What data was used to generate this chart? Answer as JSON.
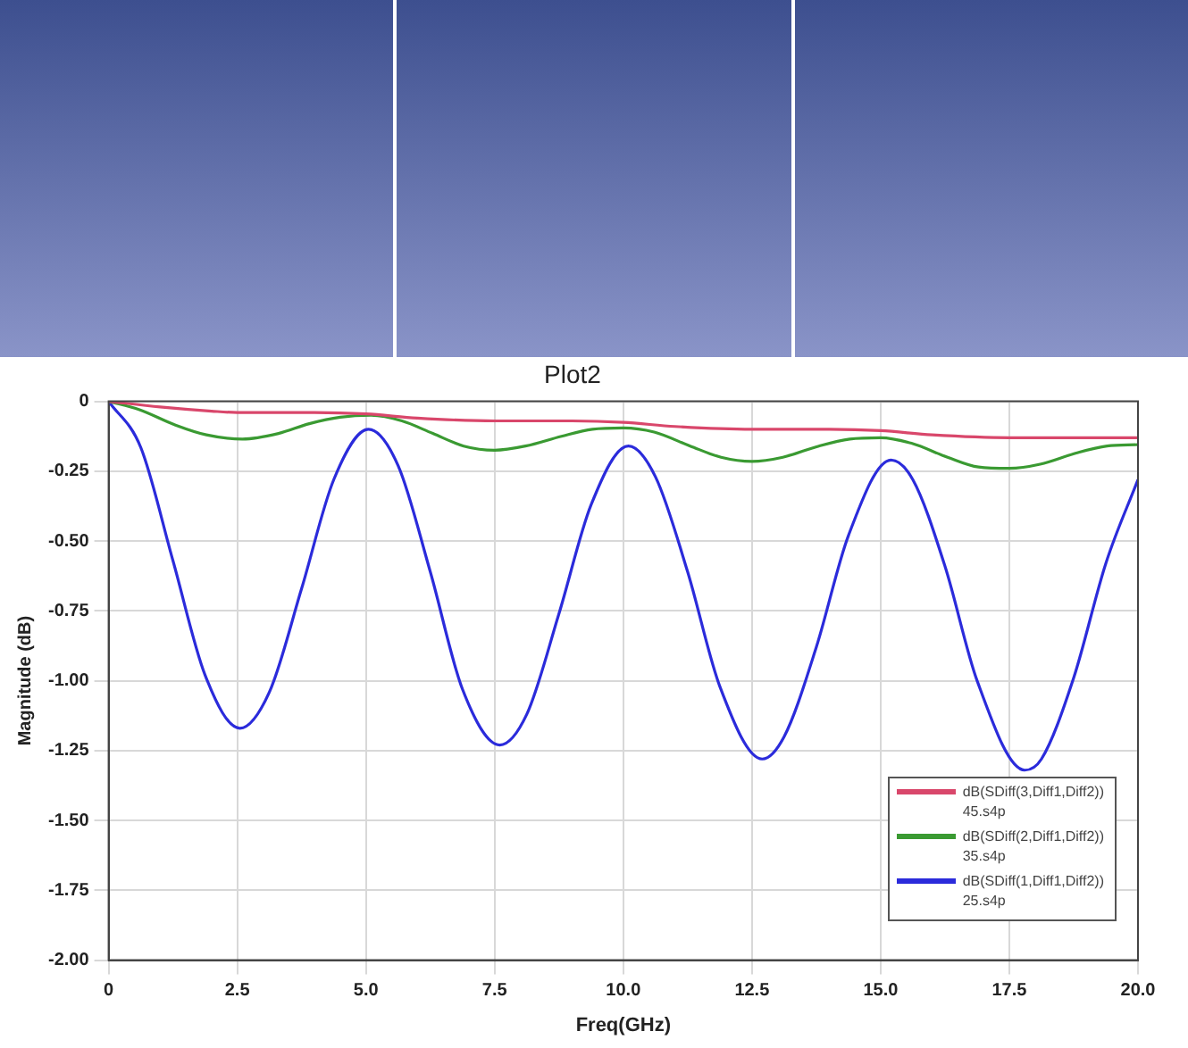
{
  "chart_data": {
    "type": "line",
    "title": "Plot2",
    "xlabel": "Freq(GHz)",
    "ylabel": "Magnitude (dB)",
    "xlim": [
      0,
      20
    ],
    "xticks": [
      0,
      {
        "value": 2.5,
        "label": "2.5"
      },
      {
        "value": 5,
        "label": "5.0"
      },
      {
        "value": 7.5,
        "label": "7.5"
      },
      {
        "value": 10,
        "label": "10.0"
      },
      {
        "value": 12.5,
        "label": "12.5"
      },
      {
        "value": 15,
        "label": "15.0"
      },
      {
        "value": 17.5,
        "label": "17.5"
      },
      {
        "value": 20,
        "label": "20.0"
      }
    ],
    "ylim": [
      -2,
      0
    ],
    "yticks": [
      {
        "value": -2,
        "label": "-2.00"
      },
      {
        "value": -1.75,
        "label": "-1.75"
      },
      {
        "value": -1.5,
        "label": "-1.50"
      },
      {
        "value": -1.25,
        "label": "-1.25"
      },
      {
        "value": -1,
        "label": "-1.00"
      },
      {
        "value": -0.75,
        "label": "-0.75"
      },
      {
        "value": -0.5,
        "label": "-0.50"
      },
      {
        "value": -0.25,
        "label": "-0.25"
      },
      0
    ],
    "grid": true,
    "legend": "bottom right",
    "marker": "none",
    "line_style": "solid",
    "series": [
      {
        "name": "dB(SDiff(3,Diff1,Diff2)) 45.s4p",
        "color": "#d9476b",
        "x": [
          0,
          1,
          2,
          2.5,
          4,
          5,
          6,
          7.5,
          9,
          10,
          11,
          12.5,
          14,
          15,
          16,
          17.5,
          20
        ],
        "values": [
          0,
          -0.02,
          -0.035,
          -0.04,
          -0.04,
          -0.045,
          -0.06,
          -0.07,
          -0.07,
          -0.075,
          -0.09,
          -0.1,
          -0.1,
          -0.105,
          -0.12,
          -0.13,
          -0.13
        ]
      },
      {
        "name": "dB(SDiff(2,Diff1,Diff2)) 35.s4p",
        "color": "#3a9a32",
        "x": [
          0,
          0.6,
          1.3,
          1.9,
          2.6,
          3.3,
          3.9,
          4.5,
          5.1,
          5.7,
          6.3,
          6.9,
          7.5,
          8.1,
          8.8,
          9.4,
          10,
          10.6,
          11.3,
          11.9,
          12.5,
          13.1,
          13.8,
          14.4,
          15,
          15.6,
          16.3,
          16.9,
          17.5,
          18.1,
          18.8,
          19.4,
          20
        ],
        "values": [
          0,
          -0.03,
          -0.085,
          -0.12,
          -0.135,
          -0.115,
          -0.08,
          -0.057,
          -0.05,
          -0.07,
          -0.115,
          -0.16,
          -0.175,
          -0.16,
          -0.125,
          -0.1,
          -0.095,
          -0.11,
          -0.16,
          -0.2,
          -0.215,
          -0.2,
          -0.16,
          -0.135,
          -0.13,
          -0.15,
          -0.2,
          -0.235,
          -0.24,
          -0.225,
          -0.185,
          -0.16,
          -0.155
        ]
      },
      {
        "name": "dB(SDiff(1,Diff1,Diff2)) 25.s4p",
        "color": "#2b2bdb",
        "x": [
          0,
          0.625,
          1.25,
          1.875,
          2.55,
          3.125,
          3.75,
          4.375,
          5.05,
          5.625,
          6.25,
          6.875,
          7.6,
          8.125,
          8.75,
          9.375,
          10.1,
          10.625,
          11.25,
          11.875,
          12.7,
          13.125,
          13.75,
          14.375,
          15.2,
          15.625,
          16.25,
          16.875,
          17.8,
          18.125,
          18.75,
          19.375,
          20
        ],
        "values": [
          0,
          -0.165,
          -0.57,
          -0.98,
          -1.17,
          -1.04,
          -0.67,
          -0.28,
          -0.1,
          -0.23,
          -0.61,
          -1.03,
          -1.23,
          -1.12,
          -0.76,
          -0.37,
          -0.16,
          -0.27,
          -0.61,
          -1.02,
          -1.28,
          -1.2,
          -0.88,
          -0.48,
          -0.21,
          -0.28,
          -0.59,
          -1.0,
          -1.32,
          -1.28,
          -0.99,
          -0.58,
          -0.28
        ]
      }
    ]
  }
}
